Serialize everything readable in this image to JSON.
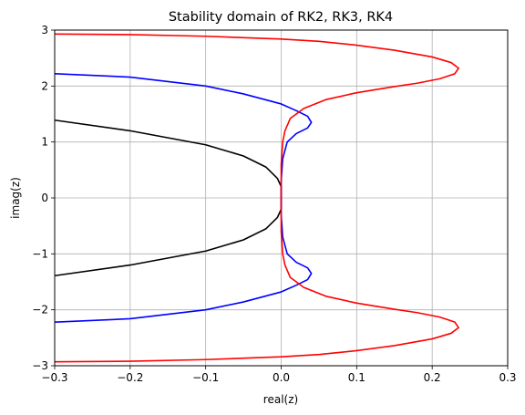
{
  "chart_data": {
    "type": "line",
    "title": "Stability domain of RK2, RK3, RK4",
    "xlabel": "real(z)",
    "ylabel": "imag(z)",
    "xlim": [
      -0.3,
      0.3
    ],
    "ylim": [
      -3,
      3
    ],
    "x_ticks": [
      -0.3,
      -0.2,
      -0.1,
      0.0,
      0.1,
      0.2,
      0.3
    ],
    "x_tick_labels": [
      "−0.3",
      "−0.2",
      "−0.1",
      "0.0",
      "0.1",
      "0.2",
      "0.3"
    ],
    "y_ticks": [
      -3,
      -2,
      -1,
      0,
      1,
      2,
      3
    ],
    "y_tick_labels": [
      "−3",
      "−2",
      "−1",
      "0",
      "1",
      "2",
      "3"
    ],
    "grid": true,
    "legend": "none",
    "series": [
      {
        "color": "#000000",
        "points": [
          [
            -0.3,
            1.39
          ],
          [
            -0.2,
            1.2
          ],
          [
            -0.1,
            0.95
          ],
          [
            -0.05,
            0.75
          ],
          [
            -0.02,
            0.55
          ],
          [
            -0.005,
            0.35
          ],
          [
            0.0,
            0.2
          ],
          [
            0.0,
            0.0
          ],
          [
            0.0,
            -0.2
          ],
          [
            -0.005,
            -0.35
          ],
          [
            -0.02,
            -0.55
          ],
          [
            -0.05,
            -0.75
          ],
          [
            -0.1,
            -0.95
          ],
          [
            -0.2,
            -1.2
          ],
          [
            -0.3,
            -1.39
          ]
        ]
      },
      {
        "color": "#0000ff",
        "points": [
          [
            -0.3,
            2.22
          ],
          [
            -0.2,
            2.16
          ],
          [
            -0.1,
            2.0
          ],
          [
            -0.05,
            1.86
          ],
          [
            0.0,
            1.68
          ],
          [
            0.02,
            1.56
          ],
          [
            0.035,
            1.46
          ],
          [
            0.04,
            1.35
          ],
          [
            0.035,
            1.25
          ],
          [
            0.02,
            1.15
          ],
          [
            0.008,
            1.0
          ],
          [
            0.002,
            0.7
          ],
          [
            0.0,
            0.3
          ],
          [
            0.0,
            0.0
          ],
          [
            0.0,
            -0.3
          ],
          [
            0.002,
            -0.7
          ],
          [
            0.008,
            -1.0
          ],
          [
            0.02,
            -1.15
          ],
          [
            0.035,
            -1.25
          ],
          [
            0.04,
            -1.35
          ],
          [
            0.035,
            -1.46
          ],
          [
            0.02,
            -1.56
          ],
          [
            0.0,
            -1.68
          ],
          [
            -0.05,
            -1.86
          ],
          [
            -0.1,
            -2.0
          ],
          [
            -0.2,
            -2.16
          ],
          [
            -0.3,
            -2.22
          ]
        ]
      },
      {
        "color": "#ff0000",
        "points": [
          [
            -0.3,
            2.93
          ],
          [
            -0.2,
            2.92
          ],
          [
            -0.1,
            2.89
          ],
          [
            0.0,
            2.84
          ],
          [
            0.05,
            2.8
          ],
          [
            0.1,
            2.73
          ],
          [
            0.15,
            2.64
          ],
          [
            0.2,
            2.52
          ],
          [
            0.225,
            2.42
          ],
          [
            0.235,
            2.32
          ],
          [
            0.23,
            2.22
          ],
          [
            0.21,
            2.13
          ],
          [
            0.18,
            2.05
          ],
          [
            0.15,
            1.99
          ],
          [
            0.1,
            1.88
          ],
          [
            0.06,
            1.76
          ],
          [
            0.03,
            1.6
          ],
          [
            0.012,
            1.42
          ],
          [
            0.005,
            1.2
          ],
          [
            0.002,
            1.0
          ],
          [
            0.0,
            0.6
          ],
          [
            0.0,
            0.0
          ],
          [
            0.0,
            -0.6
          ],
          [
            0.002,
            -1.0
          ],
          [
            0.005,
            -1.2
          ],
          [
            0.012,
            -1.42
          ],
          [
            0.03,
            -1.6
          ],
          [
            0.06,
            -1.76
          ],
          [
            0.1,
            -1.88
          ],
          [
            0.15,
            -1.99
          ],
          [
            0.18,
            -2.05
          ],
          [
            0.21,
            -2.13
          ],
          [
            0.23,
            -2.22
          ],
          [
            0.235,
            -2.32
          ],
          [
            0.225,
            -2.42
          ],
          [
            0.2,
            -2.52
          ],
          [
            0.15,
            -2.64
          ],
          [
            0.1,
            -2.73
          ],
          [
            0.05,
            -2.8
          ],
          [
            0.0,
            -2.84
          ],
          [
            -0.1,
            -2.89
          ],
          [
            -0.2,
            -2.92
          ],
          [
            -0.3,
            -2.93
          ]
        ]
      }
    ]
  }
}
